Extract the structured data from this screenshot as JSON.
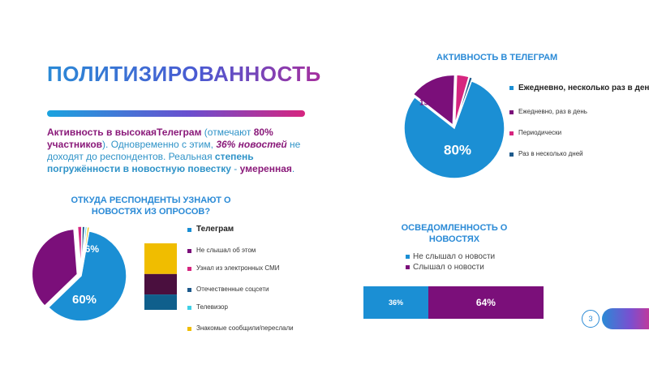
{
  "title": "ПОЛИТИЗИРОВАННОСТЬ",
  "summary": {
    "p1": "Активность в  высокая",
    "p2": "Телеграм",
    "p3": " (отмечают ",
    "p4": "80% участников",
    "p5": "). Одновременно с этим, ",
    "p6": "36% новостей",
    "p7": " не доходят до респондентов. Реальная ",
    "p8": "степень погружённости в новостную повестку",
    "p9": " - ",
    "p10": "умеренная",
    "p11": "."
  },
  "colors": {
    "blue": "#1b8fd4",
    "purple": "#7b0f7a",
    "magenta": "#d6257f",
    "navy": "#1e5a8c",
    "cyan": "#3fd0e6",
    "yellow": "#f0bd00",
    "plum": "#4a0f3e",
    "steel": "#0f5f8c"
  },
  "chart_data": [
    {
      "id": "telegram_activity",
      "type": "pie",
      "title": "АКТИВНОСТЬ В ТЕЛЕГРАМ",
      "categories": [
        "Ежедневно, несколько раз в день",
        "Ежедневно, раз в день",
        "Периодически",
        "Раз в несколько дней"
      ],
      "values": [
        80,
        15,
        4,
        1
      ],
      "labels": [
        "80%",
        "15%",
        "",
        ""
      ],
      "colors": [
        "#1b8fd4",
        "#7b0f7a",
        "#d6257f",
        "#1e5a8c"
      ],
      "legend": "right"
    },
    {
      "id": "news_sources",
      "type": "pie",
      "title": "ОТКУДА РЕСПОНДЕНТЫ УЗНАЮТ О НОВОСТЯХ ИЗ ОПРОСОВ?",
      "categories": [
        "Телеграм",
        "Не слышал об этом",
        "Узнал из электронных СМИ",
        "Отечественные соцсети",
        "Телевизор",
        "Знакомые сообщили/переслали"
      ],
      "values": [
        60,
        36,
        1.5,
        1,
        0.7,
        0.8
      ],
      "labels": [
        "60%",
        "36%",
        "",
        "",
        "",
        ""
      ],
      "colors": [
        "#1b8fd4",
        "#7b0f7a",
        "#d6257f",
        "#1e5a8c",
        "#3fd0e6",
        "#f0bd00"
      ],
      "legend": "right",
      "breakout_bar": {
        "segments": [
          {
            "color": "#f0bd00",
            "value": 3
          },
          {
            "color": "#4a0f3e",
            "value": 2
          },
          {
            "color": "#0f5f8c",
            "value": 1.5
          }
        ]
      }
    },
    {
      "id": "awareness",
      "type": "bar",
      "title": "ОСВЕДОМЛЕННОСТЬ О НОВОСТЯХ",
      "categories": [
        "Не слышал о новости",
        "Слышал о новости"
      ],
      "values": [
        36,
        64
      ],
      "labels": [
        "36%",
        "64%"
      ],
      "colors": [
        "#1b8fd4",
        "#7b0f7a"
      ],
      "stacked": true,
      "orientation": "horizontal",
      "legend": "top"
    }
  ],
  "page": {
    "number": "3"
  }
}
